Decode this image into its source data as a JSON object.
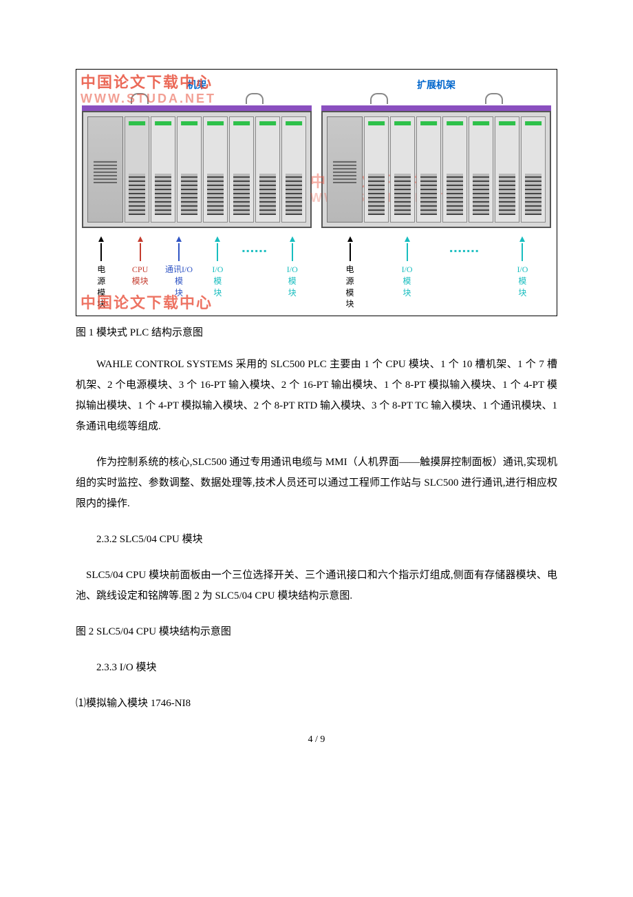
{
  "figure": {
    "watermark_line1": "中国论文下载中心",
    "watermark_line2": "WWW.STUDA.NET",
    "rack1_title": "机架",
    "rack2_title": "扩展机架",
    "main_labels": {
      "psu": "电源模块",
      "cpu_l1": "CPU",
      "cpu_l2": "模块",
      "comm_l1": "通讯I/O",
      "comm_l2": "模块",
      "io_l1": "I/O",
      "io_l2": "模块",
      "dots": "▪▪▪▪▪▪"
    },
    "ext_labels": {
      "psu": "电源模块",
      "io_l1": "I/O",
      "io_l2": "模块",
      "dots": "▪▪▪▪▪▪▪"
    },
    "colors": {
      "black": "#000000",
      "red": "#c43b2d",
      "blue": "#2f54c4",
      "teal": "#17bdbf",
      "purple": "#8a4fbf",
      "title_blue": "#0066cc"
    }
  },
  "caption_fig1": "图 1  模块式 PLC 结构示意图",
  "p1": "WAHLE CONTROL SYSTEMS 采用的 SLC500 PLC 主要由 1 个 CPU 模块、1 个 10 槽机架、1 个 7 槽机架、2 个电源模块、3 个 16-PT 输入模块、2 个 16-PT 输出模块、1 个 8-PT 模拟输入模块、1 个 4-PT 模拟输出模块、1 个 4-PT 模拟输入模块、2 个 8-PT RTD 输入模块、3 个 8-PT TC 输入模块、1 个通讯模块、1 条通讯电缆等组成.",
  "p2": "作为控制系统的核心,SLC500 通过专用通讯电缆与 MMI（人机界面——触摸屏控制面板）通讯,实现机组的实时监控、参数调整、数据处理等,技术人员还可以通过工程师工作站与 SLC500 进行通讯,进行相应权限内的操作.",
  "h_232": "2.3.2 SLC5/04 CPU 模块",
  "p3": "SLC5/04 CPU 模块前面板由一个三位选择开关、三个通讯接口和六个指示灯组成,侧面有存储器模块、电池、跳线设定和铭牌等.图 2 为 SLC5/04 CPU 模块结构示意图.",
  "caption_fig2": "图 2 SLC5/04 CPU 模块结构示意图",
  "h_233": "2.3.3 I/O 模块",
  "p4": "⑴模拟输入模块 1746-NI8",
  "pagenum": "4 / 9"
}
